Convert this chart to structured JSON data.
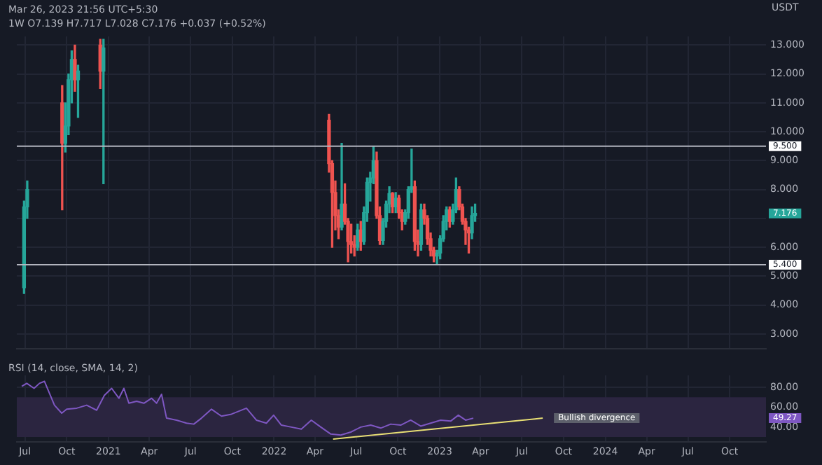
{
  "chart_data": [
    {
      "type": "candlestick",
      "title": "1W  O7.139 H7.717 L7.028 C7.176 +0.037 (+0.52%)",
      "subtitle": "Mar 26, 2023 21:56 UTC+5:30",
      "ylabel": "USDT",
      "x": [
        "2020-06-29",
        "2020-07-06",
        "2020-09-21",
        "2020-09-28",
        "2020-10-05",
        "2020-10-12",
        "2020-10-19",
        "2020-10-26",
        "2020-12-14",
        "2020-12-21",
        "2022-05-02",
        "2022-05-09",
        "2022-05-16",
        "2022-05-23",
        "2022-05-30",
        "2022-06-06",
        "2022-06-13",
        "2022-06-20",
        "2022-06-27",
        "2022-07-04",
        "2022-07-11",
        "2022-07-18",
        "2022-07-25",
        "2022-08-01",
        "2022-08-08",
        "2022-08-15",
        "2022-08-22",
        "2022-08-29",
        "2022-09-05",
        "2022-09-12",
        "2022-09-19",
        "2022-09-26",
        "2022-10-03",
        "2022-10-10",
        "2022-10-17",
        "2022-10-24",
        "2022-10-31",
        "2022-11-07",
        "2022-11-14",
        "2022-11-21",
        "2022-11-28",
        "2022-12-05",
        "2022-12-12",
        "2022-12-19",
        "2022-12-26",
        "2023-01-02",
        "2023-01-09",
        "2023-01-16",
        "2023-01-23",
        "2023-01-30",
        "2023-02-06",
        "2023-02-13",
        "2023-02-20",
        "2023-02-27",
        "2023-03-06",
        "2023-03-13",
        "2023-03-20"
      ],
      "ohlc": [
        [
          4.6,
          7.6,
          4.4,
          7.4
        ],
        [
          7.4,
          8.3,
          7.0,
          8.0
        ],
        [
          11.0,
          11.6,
          7.3,
          9.6
        ],
        [
          9.6,
          11.0,
          9.3,
          10.2
        ],
        [
          10.2,
          12.0,
          9.9,
          11.8
        ],
        [
          11.8,
          12.8,
          11.0,
          12.5
        ],
        [
          12.5,
          13.0,
          11.4,
          11.8
        ],
        [
          11.8,
          12.3,
          10.5,
          12.1
        ],
        [
          13.0,
          13.2,
          11.5,
          12.1
        ],
        [
          12.1,
          13.2,
          8.2,
          12.9
        ],
        [
          10.4,
          10.6,
          8.6,
          8.9
        ],
        [
          8.9,
          9.0,
          6.0,
          7.9
        ],
        [
          7.9,
          8.3,
          6.6,
          7.1
        ],
        [
          7.1,
          7.3,
          6.3,
          6.7
        ],
        [
          6.7,
          9.6,
          6.6,
          7.5
        ],
        [
          7.5,
          8.2,
          6.8,
          6.9
        ],
        [
          6.9,
          7.0,
          5.5,
          6.2
        ],
        [
          6.2,
          6.8,
          5.8,
          6.1
        ],
        [
          6.1,
          6.4,
          5.7,
          6.0
        ],
        [
          6.0,
          6.8,
          5.9,
          6.6
        ],
        [
          6.6,
          6.9,
          5.9,
          6.2
        ],
        [
          6.2,
          7.4,
          6.1,
          7.2
        ],
        [
          7.2,
          8.4,
          6.9,
          8.25
        ],
        [
          8.25,
          8.6,
          7.6,
          8.4
        ],
        [
          8.4,
          9.5,
          8.2,
          9.0
        ],
        [
          9.0,
          9.3,
          7.0,
          7.1
        ],
        [
          7.1,
          7.4,
          6.1,
          6.24
        ],
        [
          6.24,
          7.0,
          6.1,
          6.9
        ],
        [
          6.9,
          7.6,
          6.7,
          7.5
        ],
        [
          7.5,
          8.1,
          7.2,
          7.86
        ],
        [
          7.86,
          7.9,
          7.2,
          7.4
        ],
        [
          7.4,
          7.9,
          7.2,
          7.7
        ],
        [
          7.7,
          7.8,
          7.0,
          7.2
        ],
        [
          7.2,
          7.3,
          6.6,
          6.9
        ],
        [
          6.9,
          7.3,
          6.8,
          7.2
        ],
        [
          7.2,
          8.1,
          7.0,
          8.0
        ],
        [
          8.0,
          9.4,
          7.9,
          8.1
        ],
        [
          8.1,
          8.3,
          5.9,
          6.2
        ],
        [
          6.2,
          6.6,
          5.7,
          6.1
        ],
        [
          6.1,
          7.5,
          5.9,
          7.3
        ],
        [
          7.3,
          7.5,
          6.8,
          7.0
        ],
        [
          7.0,
          7.1,
          6.1,
          6.3
        ],
        [
          6.3,
          6.5,
          5.7,
          5.9
        ],
        [
          5.9,
          6.0,
          5.5,
          5.7
        ],
        [
          5.7,
          5.9,
          5.4,
          5.8
        ],
        [
          5.8,
          6.4,
          5.6,
          6.3
        ],
        [
          6.3,
          7.1,
          6.2,
          6.9
        ],
        [
          6.9,
          7.4,
          6.6,
          7.3
        ],
        [
          7.3,
          7.4,
          6.7,
          6.9
        ],
        [
          6.9,
          7.5,
          6.8,
          7.3
        ],
        [
          7.3,
          8.4,
          7.2,
          8.0
        ],
        [
          8.0,
          8.1,
          7.3,
          7.4
        ],
        [
          7.4,
          7.5,
          6.8,
          6.9
        ],
        [
          6.9,
          7.0,
          6.1,
          6.6
        ],
        [
          6.6,
          6.7,
          5.8,
          6.5
        ],
        [
          6.5,
          7.4,
          6.3,
          7.1
        ],
        [
          7.1,
          7.5,
          6.9,
          7.176
        ]
      ],
      "colors": [
        "#26a69a",
        "#26a69a",
        "#ef5350",
        "#26a69a",
        "#26a69a",
        "#26a69a",
        "#ef5350",
        "#26a69a",
        "#ef5350",
        "#26a69a",
        "#ef5350",
        "#ef5350",
        "#ef5350",
        "#ef5350",
        "#26a69a",
        "#ef5350",
        "#ef5350",
        "#ef5350",
        "#ef5350",
        "#26a69a",
        "#ef5350",
        "#26a69a",
        "#26a69a",
        "#26a69a",
        "#26a69a",
        "#ef5350",
        "#ef5350",
        "#26a69a",
        "#26a69a",
        "#26a69a",
        "#ef5350",
        "#26a69a",
        "#ef5350",
        "#ef5350",
        "#26a69a",
        "#26a69a",
        "#26a69a",
        "#ef5350",
        "#ef5350",
        "#26a69a",
        "#ef5350",
        "#ef5350",
        "#ef5350",
        "#ef5350",
        "#26a69a",
        "#26a69a",
        "#26a69a",
        "#26a69a",
        "#ef5350",
        "#26a69a",
        "#26a69a",
        "#ef5350",
        "#ef5350",
        "#ef5350",
        "#ef5350",
        "#26a69a",
        "#26a69a"
      ],
      "xlim": [
        "2020-06-13",
        "2024-12-20"
      ],
      "xticks": [
        {
          "value": "2020-07-01",
          "label": null
        },
        {
          "value": "2020-10-01",
          "label": null
        },
        {
          "value": "2021-01-01",
          "label": null
        },
        {
          "value": "2021-04-01",
          "label": null
        },
        {
          "value": "2021-07-01",
          "label": null
        },
        {
          "value": "2021-10-01",
          "label": null
        },
        {
          "value": "2022-01-01",
          "label": null
        },
        {
          "value": "2022-04-01",
          "label": null
        },
        {
          "value": "2022-07-01",
          "label": null
        },
        {
          "value": "2022-10-01",
          "label": null
        },
        {
          "value": "2023-01-01",
          "label": null
        },
        {
          "value": "2023-04-01",
          "label": null
        },
        {
          "value": "2023-07-01",
          "label": null
        },
        {
          "value": "2023-10-01",
          "label": null
        },
        {
          "value": "2024-01-01",
          "label": null
        },
        {
          "value": "2024-04-01",
          "label": null
        },
        {
          "value": "2024-07-01",
          "label": null
        },
        {
          "value": "2024-10-01",
          "label": null
        }
      ],
      "ylim": [
        2.5,
        13.3
      ],
      "yticks": [
        {
          "value": 3,
          "label": "3.000"
        },
        {
          "value": 4,
          "label": "4.000"
        },
        {
          "value": 5,
          "label": "5.000"
        },
        {
          "value": 6,
          "label": "6.000"
        },
        {
          "value": 7,
          "label": null
        },
        {
          "value": 8,
          "label": "8.000"
        },
        {
          "value": 9,
          "label": "9.000"
        },
        {
          "value": 10,
          "label": "10.000"
        },
        {
          "value": 11,
          "label": "11.000"
        },
        {
          "value": 12,
          "label": "12.000"
        },
        {
          "value": 13,
          "label": "13.000"
        }
      ],
      "ref_lines": [
        {
          "axis": "y",
          "value": 9.5,
          "label": "9.500",
          "color": "#b2b5be"
        },
        {
          "axis": "y",
          "value": 5.4,
          "label": "5.400",
          "color": "#b2b5be"
        }
      ],
      "annotations": [
        "7.176"
      ],
      "grid": true,
      "tick_labels": "y",
      "legend": false
    },
    {
      "type": "line",
      "title": "RSI (14, close, SMA, 14, 2)",
      "series": [
        {
          "color": "#7e57c2",
          "x": [
            "2020-06-24",
            "2020-07-05",
            "2020-07-21",
            "2020-08-02",
            "2020-08-13",
            "2020-08-24",
            "2020-09-04",
            "2020-09-20",
            "2020-10-01",
            "2020-10-23",
            "2020-11-14",
            "2020-12-06",
            "2020-12-23",
            "2021-01-08",
            "2021-01-24",
            "2021-02-04",
            "2021-02-15",
            "2021-03-04",
            "2021-03-20",
            "2021-04-06",
            "2021-04-17",
            "2021-04-28",
            "2021-05-09",
            "2021-05-31",
            "2021-06-22",
            "2021-07-08",
            "2021-07-25",
            "2021-08-16",
            "2021-09-07",
            "2021-09-29",
            "2021-11-01",
            "2021-11-23",
            "2021-12-15",
            "2021-12-31",
            "2022-01-17",
            "2022-02-08",
            "2022-03-02",
            "2022-03-24",
            "2022-04-14",
            "2022-05-06",
            "2022-05-28",
            "2022-06-19",
            "2022-07-11",
            "2022-08-02",
            "2022-08-24",
            "2022-09-15",
            "2022-10-07",
            "2022-10-29",
            "2022-11-20",
            "2022-12-12",
            "2023-01-03",
            "2023-01-25",
            "2023-02-11",
            "2023-02-27",
            "2023-03-16"
          ],
          "values": [
            81,
            84,
            79,
            84,
            86,
            74,
            62,
            54,
            58,
            59,
            62,
            57,
            72,
            79,
            69,
            79,
            64,
            66,
            64,
            69,
            64,
            73,
            49,
            47,
            44,
            43,
            49,
            58,
            51,
            53,
            59,
            47,
            44,
            52,
            42,
            40,
            38,
            47,
            40,
            33,
            32,
            35,
            40,
            42,
            39,
            43,
            42,
            47,
            41,
            44,
            47,
            46,
            52,
            47,
            49
          ]
        },
        {
          "type": "line",
          "color": "#e8df74",
          "x": [
            "2022-05-11",
            "2023-08-16"
          ],
          "values": [
            28,
            49
          ]
        }
      ],
      "xlim": [
        "2020-06-13",
        "2024-12-20"
      ],
      "xticks": [
        {
          "value": "2020-07-01",
          "label": "Jul"
        },
        {
          "value": "2020-10-01",
          "label": "Oct"
        },
        {
          "value": "2021-01-01",
          "label": "2021"
        },
        {
          "value": "2021-04-01",
          "label": "Apr"
        },
        {
          "value": "2021-07-01",
          "label": "Jul"
        },
        {
          "value": "2021-10-01",
          "label": "Oct"
        },
        {
          "value": "2022-01-01",
          "label": "2022"
        },
        {
          "value": "2022-04-01",
          "label": "Apr"
        },
        {
          "value": "2022-07-01",
          "label": "Jul"
        },
        {
          "value": "2022-10-01",
          "label": "Oct"
        },
        {
          "value": "2023-01-01",
          "label": "2023"
        },
        {
          "value": "2023-04-01",
          "label": "Apr"
        },
        {
          "value": "2023-07-01",
          "label": "Jul"
        },
        {
          "value": "2023-10-01",
          "label": "Oct"
        },
        {
          "value": "2024-01-01",
          "label": "2024"
        },
        {
          "value": "2024-04-01",
          "label": "Apr"
        },
        {
          "value": "2024-07-01",
          "label": "Jul"
        },
        {
          "value": "2024-10-01",
          "label": "Oct"
        }
      ],
      "ylim": [
        25,
        92
      ],
      "yticks": [
        {
          "value": 40,
          "label": "40.00"
        },
        {
          "value": 60,
          "label": "60.00"
        },
        {
          "value": 80,
          "label": "80.00"
        }
      ],
      "bands": [
        {
          "axis": "y",
          "from": 30,
          "to": 70,
          "color": "#2b2540"
        }
      ],
      "annotations": [
        "Bullish divergence",
        "49.27"
      ],
      "grid": true,
      "legend": false
    }
  ]
}
